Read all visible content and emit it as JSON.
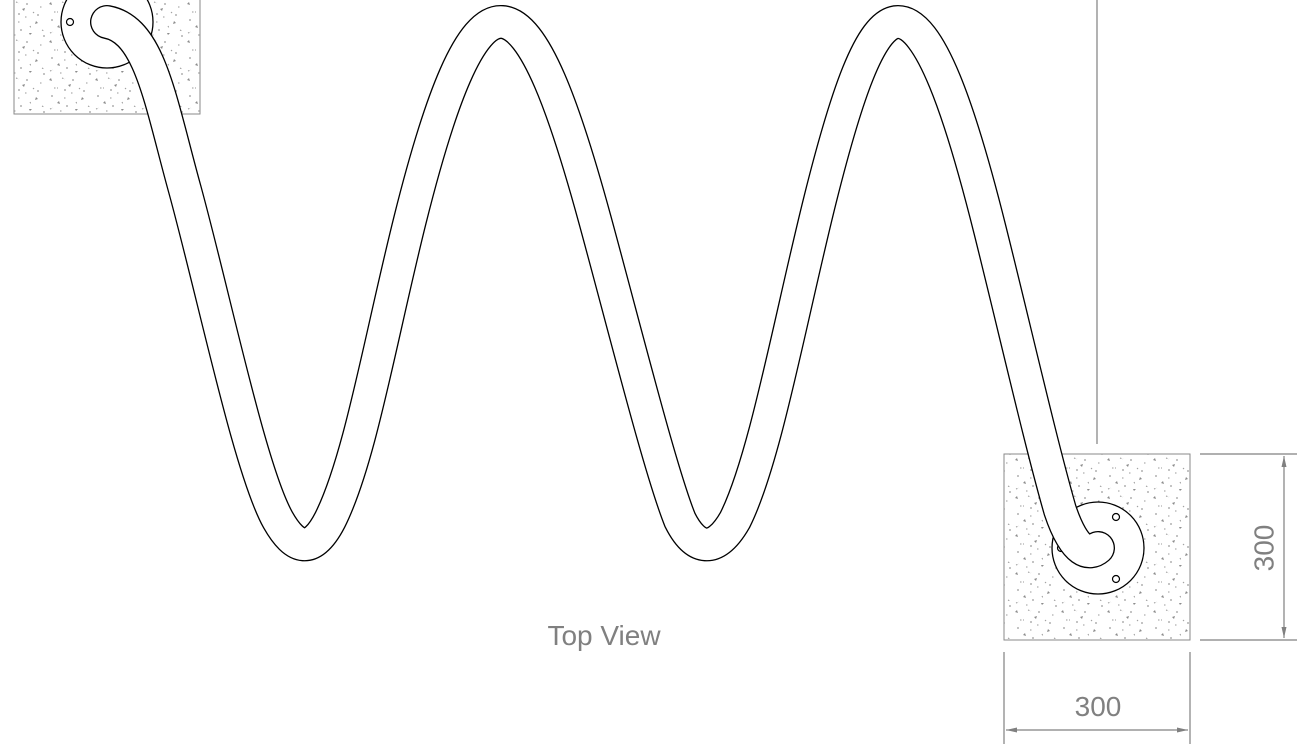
{
  "view_label": "Top View",
  "dimensions": {
    "pad_width": "300",
    "pad_height": "300"
  },
  "colors": {
    "line": "#000000",
    "dimension": "#808080",
    "concrete_speckle": "#9a9a9a"
  }
}
